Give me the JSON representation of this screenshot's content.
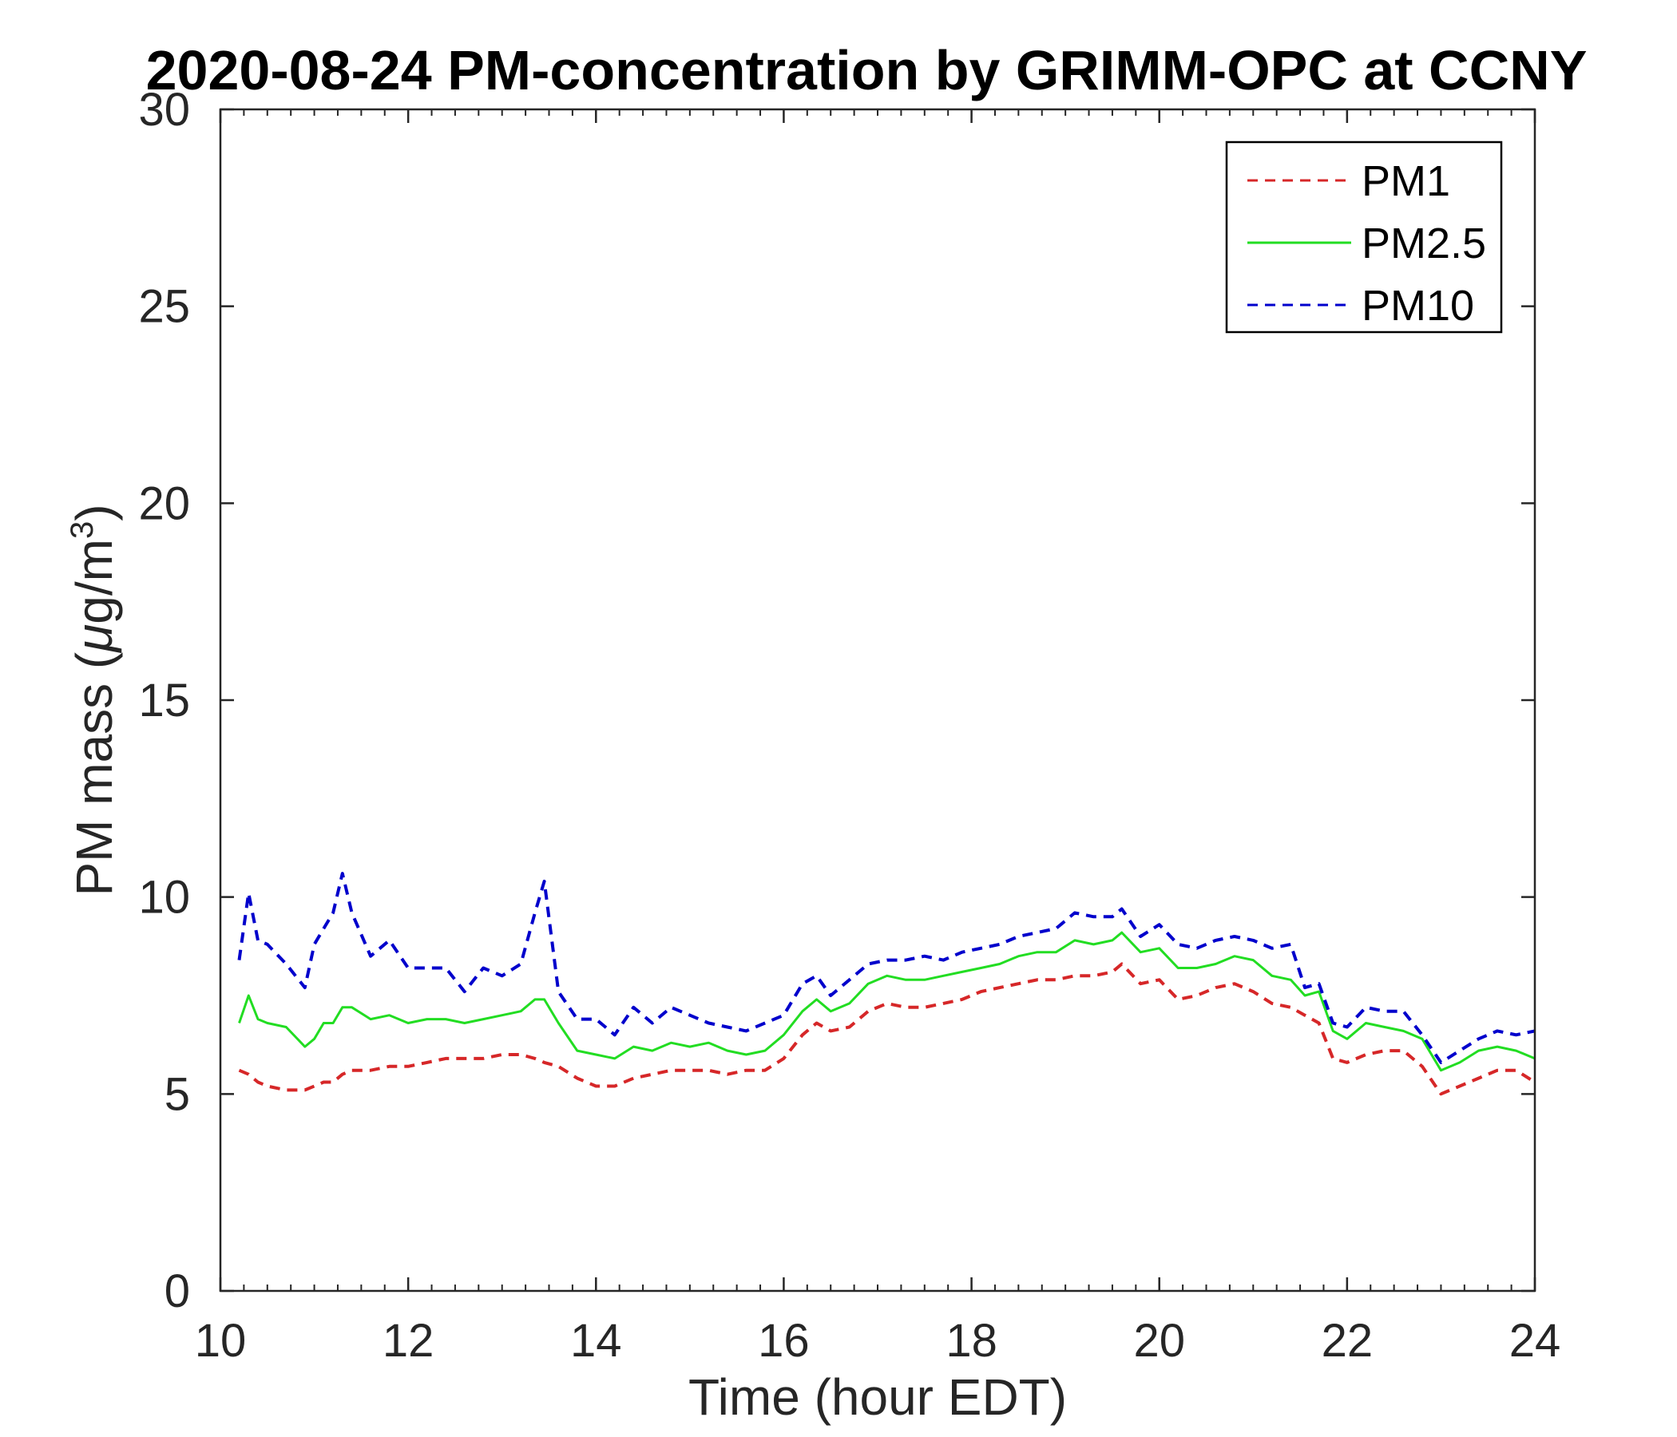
{
  "chart_data": {
    "type": "line",
    "title": "2020-08-24 PM-concentration by GRIMM-OPC at CCNY",
    "xlabel": "Time (hour EDT)",
    "ylabel": "PM mass (μg/m³)",
    "ylabel_parts": {
      "prefix": "PM mass (",
      "mu": "μ",
      "unit": "g/m",
      "sup": "3",
      "suffix": ")"
    },
    "xlim": [
      10,
      24
    ],
    "ylim": [
      0,
      30
    ],
    "xticks": [
      10,
      12,
      14,
      16,
      18,
      20,
      22,
      24
    ],
    "yticks": [
      0,
      5,
      10,
      15,
      20,
      25,
      30
    ],
    "xtick_labels": [
      "10",
      "12",
      "14",
      "16",
      "18",
      "20",
      "22",
      "24"
    ],
    "ytick_labels": [
      "0",
      "5",
      "10",
      "15",
      "20",
      "25",
      "30"
    ],
    "grid": false,
    "legend_position": "top-right",
    "x": [
      10.2,
      10.3,
      10.4,
      10.5,
      10.7,
      10.9,
      11.0,
      11.1,
      11.2,
      11.3,
      11.4,
      11.6,
      11.8,
      12.0,
      12.2,
      12.4,
      12.6,
      12.8,
      13.0,
      13.2,
      13.35,
      13.45,
      13.6,
      13.8,
      14.0,
      14.2,
      14.4,
      14.6,
      14.8,
      15.0,
      15.2,
      15.4,
      15.6,
      15.8,
      16.0,
      16.2,
      16.35,
      16.5,
      16.7,
      16.9,
      17.1,
      17.3,
      17.5,
      17.7,
      17.9,
      18.1,
      18.3,
      18.5,
      18.7,
      18.9,
      19.1,
      19.3,
      19.5,
      19.6,
      19.8,
      20.0,
      20.2,
      20.4,
      20.6,
      20.8,
      21.0,
      21.2,
      21.4,
      21.55,
      21.7,
      21.85,
      22.0,
      22.2,
      22.4,
      22.6,
      22.8,
      23.0,
      23.2,
      23.4,
      23.6,
      23.8,
      24.0
    ],
    "series": [
      {
        "name": "PM1",
        "color": "#d62728",
        "style": "dashed",
        "values": [
          5.6,
          5.5,
          5.3,
          5.2,
          5.1,
          5.1,
          5.2,
          5.3,
          5.3,
          5.5,
          5.6,
          5.6,
          5.7,
          5.7,
          5.8,
          5.9,
          5.9,
          5.9,
          6.0,
          6.0,
          5.9,
          5.8,
          5.7,
          5.4,
          5.2,
          5.2,
          5.4,
          5.5,
          5.6,
          5.6,
          5.6,
          5.5,
          5.6,
          5.6,
          5.9,
          6.5,
          6.8,
          6.6,
          6.7,
          7.1,
          7.3,
          7.2,
          7.2,
          7.3,
          7.4,
          7.6,
          7.7,
          7.8,
          7.9,
          7.9,
          8.0,
          8.0,
          8.1,
          8.3,
          7.8,
          7.9,
          7.4,
          7.5,
          7.7,
          7.8,
          7.6,
          7.3,
          7.2,
          7.0,
          6.8,
          5.9,
          5.8,
          6.0,
          6.1,
          6.1,
          5.7,
          5.0,
          5.2,
          5.4,
          5.6,
          5.6,
          5.3
        ]
      },
      {
        "name": "PM2.5",
        "color": "#22dd22",
        "style": "solid",
        "values": [
          6.8,
          7.5,
          6.9,
          6.8,
          6.7,
          6.2,
          6.4,
          6.8,
          6.8,
          7.2,
          7.2,
          6.9,
          7.0,
          6.8,
          6.9,
          6.9,
          6.8,
          6.9,
          7.0,
          7.1,
          7.4,
          7.4,
          6.8,
          6.1,
          6.0,
          5.9,
          6.2,
          6.1,
          6.3,
          6.2,
          6.3,
          6.1,
          6.0,
          6.1,
          6.5,
          7.1,
          7.4,
          7.1,
          7.3,
          7.8,
          8.0,
          7.9,
          7.9,
          8.0,
          8.1,
          8.2,
          8.3,
          8.5,
          8.6,
          8.6,
          8.9,
          8.8,
          8.9,
          9.1,
          8.6,
          8.7,
          8.2,
          8.2,
          8.3,
          8.5,
          8.4,
          8.0,
          7.9,
          7.5,
          7.6,
          6.6,
          6.4,
          6.8,
          6.7,
          6.6,
          6.4,
          5.6,
          5.8,
          6.1,
          6.2,
          6.1,
          5.9
        ]
      },
      {
        "name": "PM10",
        "color": "#0000cc",
        "style": "dashed",
        "values": [
          8.4,
          10.1,
          8.9,
          8.8,
          8.3,
          7.7,
          8.8,
          9.2,
          9.6,
          10.6,
          9.6,
          8.5,
          8.9,
          8.2,
          8.2,
          8.2,
          7.6,
          8.2,
          8.0,
          8.3,
          9.6,
          10.4,
          7.6,
          6.9,
          6.9,
          6.5,
          7.2,
          6.8,
          7.2,
          7.0,
          6.8,
          6.7,
          6.6,
          6.8,
          7.0,
          7.8,
          8.0,
          7.5,
          7.9,
          8.3,
          8.4,
          8.4,
          8.5,
          8.4,
          8.6,
          8.7,
          8.8,
          9.0,
          9.1,
          9.2,
          9.6,
          9.5,
          9.5,
          9.7,
          9.0,
          9.3,
          8.8,
          8.7,
          8.9,
          9.0,
          8.9,
          8.7,
          8.8,
          7.7,
          7.8,
          6.8,
          6.7,
          7.2,
          7.1,
          7.1,
          6.5,
          5.8,
          6.1,
          6.4,
          6.6,
          6.5,
          6.6
        ]
      }
    ]
  }
}
